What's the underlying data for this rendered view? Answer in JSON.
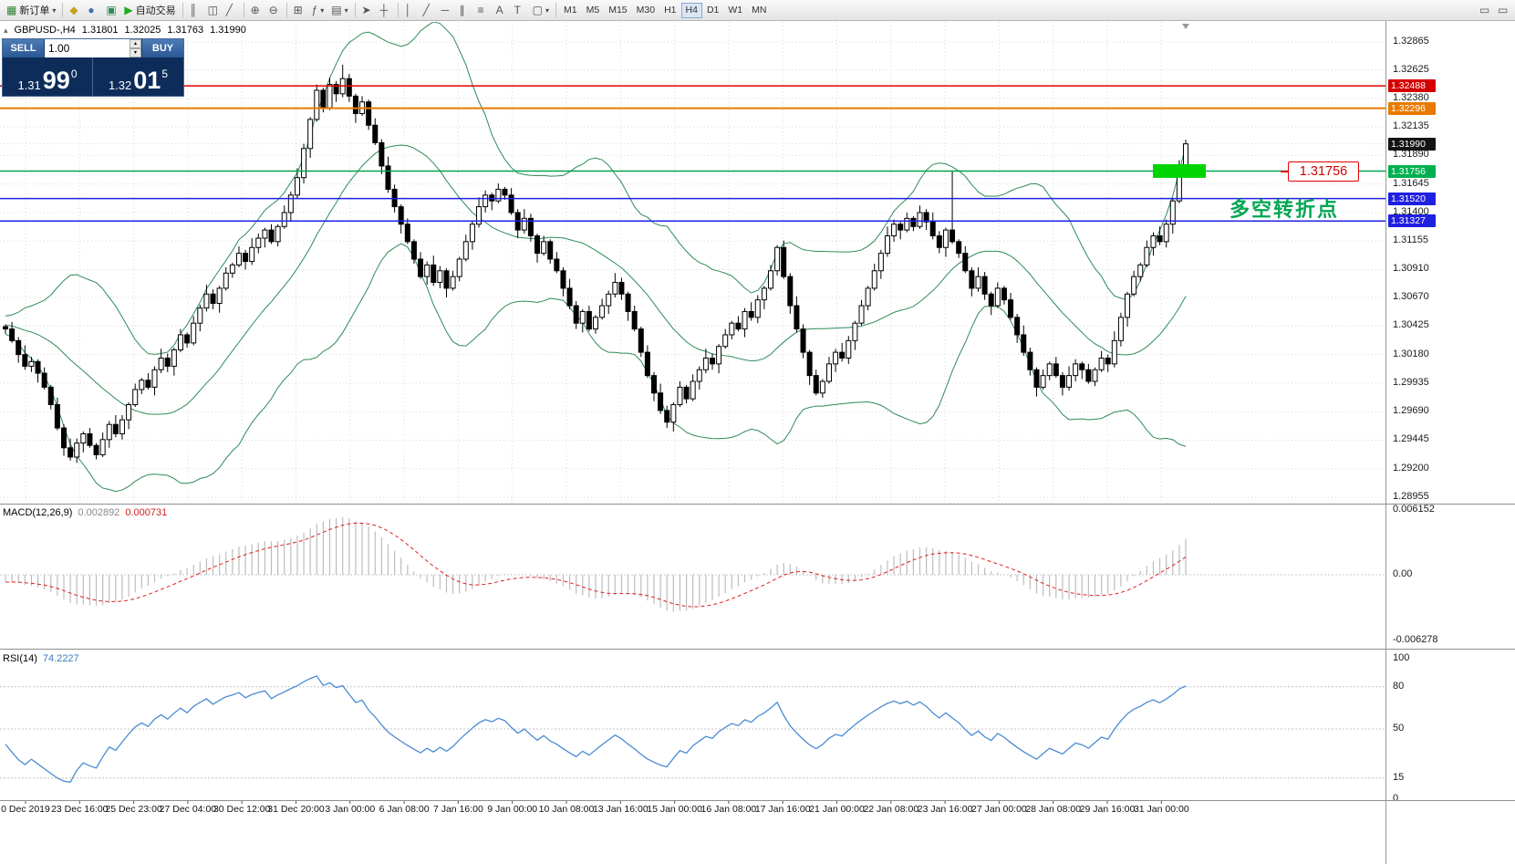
{
  "toolbar": {
    "new_order": "新订单",
    "auto_trading": "自动交易",
    "timeframes": [
      "M1",
      "M5",
      "M15",
      "M30",
      "H1",
      "H4",
      "D1",
      "W1",
      "MN"
    ],
    "active_timeframe": "H4"
  },
  "chart": {
    "symbol_info": {
      "symbol": "GBPUSD-,H4",
      "open": "1.31801",
      "high": "1.32025",
      "low": "1.31763",
      "close": "1.31990"
    },
    "trade_panel": {
      "sell_label": "SELL",
      "buy_label": "BUY",
      "volume": "1.00",
      "sell_price": {
        "prefix": "1.31",
        "big": "99",
        "sup": "0"
      },
      "buy_price": {
        "prefix": "1.32",
        "big": "01",
        "sup": "5"
      }
    },
    "annotation": "多空转折点",
    "price_callout": "1.31756",
    "colors": {
      "bull": "#ffffff",
      "bear": "#000000",
      "outline": "#000000",
      "bollinger": "#2e8b57",
      "macd_hist": "#bdbdbd",
      "macd_signal": "#e02020",
      "rsi_line": "#4a8bd4",
      "grid": "#d9d9d9",
      "highlight_rect": "#00d400",
      "tag_red": "#d40000",
      "tag_orange": "#e87a00",
      "tag_dark": "#141414",
      "tag_green": "#00b050",
      "tag_blue": "#2020e0"
    },
    "hlines": [
      {
        "price": 1.32488,
        "color": "#e00000",
        "width": 1.5
      },
      {
        "price": 1.32296,
        "color": "#e87a00",
        "width": 2
      },
      {
        "price": 1.31756,
        "color": "#00a550",
        "width": 1.5
      },
      {
        "price": 1.3152,
        "color": "#2020e0",
        "width": 1.5
      },
      {
        "price": 1.31327,
        "color": "#2020e0",
        "width": 1.5
      }
    ],
    "rect_highlight": {
      "price_top": 1.31815,
      "price_bottom": 1.31698
    },
    "price_scale": [
      {
        "label": "1.32865",
        "price": 1.32865,
        "type": "normal"
      },
      {
        "label": "1.32625",
        "price": 1.32625,
        "type": "normal"
      },
      {
        "label": "1.32488",
        "price": 1.32488,
        "type": "red"
      },
      {
        "label": "1.32380",
        "price": 1.3238,
        "type": "normal"
      },
      {
        "label": "1.32296",
        "price": 1.32296,
        "type": "orange"
      },
      {
        "label": "1.32135",
        "price": 1.32135,
        "type": "normal"
      },
      {
        "label": "1.31990",
        "price": 1.3199,
        "type": "dark"
      },
      {
        "label": "1.31890",
        "price": 1.3189,
        "type": "normal"
      },
      {
        "label": "1.31756",
        "price": 1.31756,
        "type": "green"
      },
      {
        "label": "1.31645",
        "price": 1.31645,
        "type": "normal"
      },
      {
        "label": "1.31520",
        "price": 1.3152,
        "type": "blue"
      },
      {
        "label": "1.31400",
        "price": 1.314,
        "type": "normal"
      },
      {
        "label": "1.31327",
        "price": 1.31327,
        "type": "blue"
      },
      {
        "label": "1.31155",
        "price": 1.31155,
        "type": "normal"
      },
      {
        "label": "1.30910",
        "price": 1.3091,
        "type": "normal"
      },
      {
        "label": "1.30670",
        "price": 1.3067,
        "type": "normal"
      },
      {
        "label": "1.30425",
        "price": 1.30425,
        "type": "normal"
      },
      {
        "label": "1.30180",
        "price": 1.3018,
        "type": "normal"
      },
      {
        "label": "1.29935",
        "price": 1.29935,
        "type": "normal"
      },
      {
        "label": "1.29690",
        "price": 1.2969,
        "type": "normal"
      },
      {
        "label": "1.29445",
        "price": 1.29445,
        "type": "normal"
      },
      {
        "label": "1.29200",
        "price": 1.292,
        "type": "normal"
      },
      {
        "label": "1.28955",
        "price": 1.28955,
        "type": "normal"
      }
    ],
    "time_labels": [
      "0 Dec 2019",
      "23 Dec 16:00",
      "25 Dec 23:00",
      "27 Dec 04:00",
      "30 Dec 12:00",
      "31 Dec 20:00",
      "3 Jan 00:00",
      "6 Jan 08:00",
      "7 Jan 16:00",
      "9 Jan 00:00",
      "10 Jan 08:00",
      "13 Jan 16:00",
      "15 Jan 00:00",
      "16 Jan 08:00",
      "17 Jan 16:00",
      "21 Jan 00:00",
      "22 Jan 08:00",
      "23 Jan 16:00",
      "27 Jan 00:00",
      "28 Jan 08:00",
      "29 Jan 16:00",
      "31 Jan 00:00"
    ],
    "candles": {
      "warmup": [
        1.308,
        1.3076,
        1.3072,
        1.3078,
        1.307,
        1.3065,
        1.3068,
        1.306,
        1.3055,
        1.3058,
        1.305,
        1.3046,
        1.3052,
        1.3048,
        1.3042,
        1.3045,
        1.305,
        1.3044,
        1.304,
        1.3046,
        1.3042,
        1.3038,
        1.3044,
        1.304,
        1.3036,
        1.3042,
        1.3046,
        1.304,
        1.3044,
        1.3042
      ],
      "closes": [
        1.304,
        1.303,
        1.3018,
        1.3008,
        1.3012,
        1.3002,
        1.299,
        1.2975,
        1.2955,
        1.2938,
        1.293,
        1.2942,
        1.295,
        1.294,
        1.2932,
        1.2945,
        1.2958,
        1.295,
        1.2962,
        1.2975,
        1.2988,
        1.2996,
        1.299,
        1.3005,
        1.3015,
        1.3008,
        1.3022,
        1.3035,
        1.3028,
        1.3045,
        1.3058,
        1.307,
        1.3062,
        1.3075,
        1.3088,
        1.3095,
        1.3105,
        1.3098,
        1.311,
        1.3118,
        1.3125,
        1.3115,
        1.3128,
        1.314,
        1.3155,
        1.317,
        1.3195,
        1.322,
        1.3245,
        1.323,
        1.325,
        1.3242,
        1.3255,
        1.324,
        1.3225,
        1.3235,
        1.3215,
        1.32,
        1.318,
        1.316,
        1.3145,
        1.313,
        1.3115,
        1.31,
        1.3085,
        1.3095,
        1.308,
        1.309,
        1.3075,
        1.3085,
        1.31,
        1.3115,
        1.313,
        1.3145,
        1.3155,
        1.315,
        1.316,
        1.3155,
        1.314,
        1.3125,
        1.3135,
        1.312,
        1.3105,
        1.3115,
        1.31,
        1.309,
        1.3075,
        1.306,
        1.3045,
        1.3055,
        1.304,
        1.305,
        1.306,
        1.307,
        1.308,
        1.307,
        1.3055,
        1.304,
        1.302,
        1.3,
        1.2985,
        1.297,
        1.296,
        1.2975,
        1.299,
        1.298,
        1.2995,
        1.3005,
        1.3015,
        1.301,
        1.3025,
        1.3035,
        1.3045,
        1.304,
        1.3055,
        1.305,
        1.3065,
        1.3075,
        1.309,
        1.311,
        1.3085,
        1.306,
        1.304,
        1.302,
        1.3,
        1.2985,
        1.2995,
        1.301,
        1.302,
        1.3015,
        1.303,
        1.3045,
        1.306,
        1.3075,
        1.309,
        1.3105,
        1.312,
        1.313,
        1.3125,
        1.3135,
        1.3128,
        1.314,
        1.3132,
        1.312,
        1.311,
        1.3125,
        1.3115,
        1.3105,
        1.309,
        1.3075,
        1.3085,
        1.307,
        1.306,
        1.3075,
        1.3065,
        1.305,
        1.3035,
        1.302,
        1.3005,
        1.299,
        1.3,
        1.301,
        1.3,
        1.299,
        1.3,
        1.301,
        1.3005,
        1.2995,
        1.3005,
        1.3015,
        1.301,
        1.303,
        1.305,
        1.307,
        1.3085,
        1.3095,
        1.311,
        1.312,
        1.3115,
        1.313,
        1.315,
        1.318,
        1.3199
      ],
      "wick_overrides": {
        "52": 1.3267,
        "146": 1.3176
      },
      "last_ohlc": [
        1.31801,
        1.32025,
        1.31763,
        1.3199
      ]
    },
    "bollinger": {
      "period": 20,
      "deviation": 2
    }
  },
  "macd": {
    "name": "MACD(12,26,9)",
    "main_value": "0.002892",
    "signal_value": "0.000731",
    "params": {
      "fast": 12,
      "slow": 26,
      "signal": 9
    },
    "scale": [
      {
        "label": "0.006152",
        "value": 0.006152
      },
      {
        "label": "0.00",
        "value": 0
      },
      {
        "label": "-0.006278",
        "value": -0.006278
      }
    ]
  },
  "rsi": {
    "name": "RSI(14)",
    "value": "74.2227",
    "period": 14,
    "scale": [
      {
        "label": "100",
        "value": 100
      },
      {
        "label": "80",
        "value": 80
      },
      {
        "label": "50",
        "value": 50
      },
      {
        "label": "15",
        "value": 15
      },
      {
        "label": "0",
        "value": 0
      }
    ],
    "levels": [
      80,
      50,
      15
    ]
  }
}
